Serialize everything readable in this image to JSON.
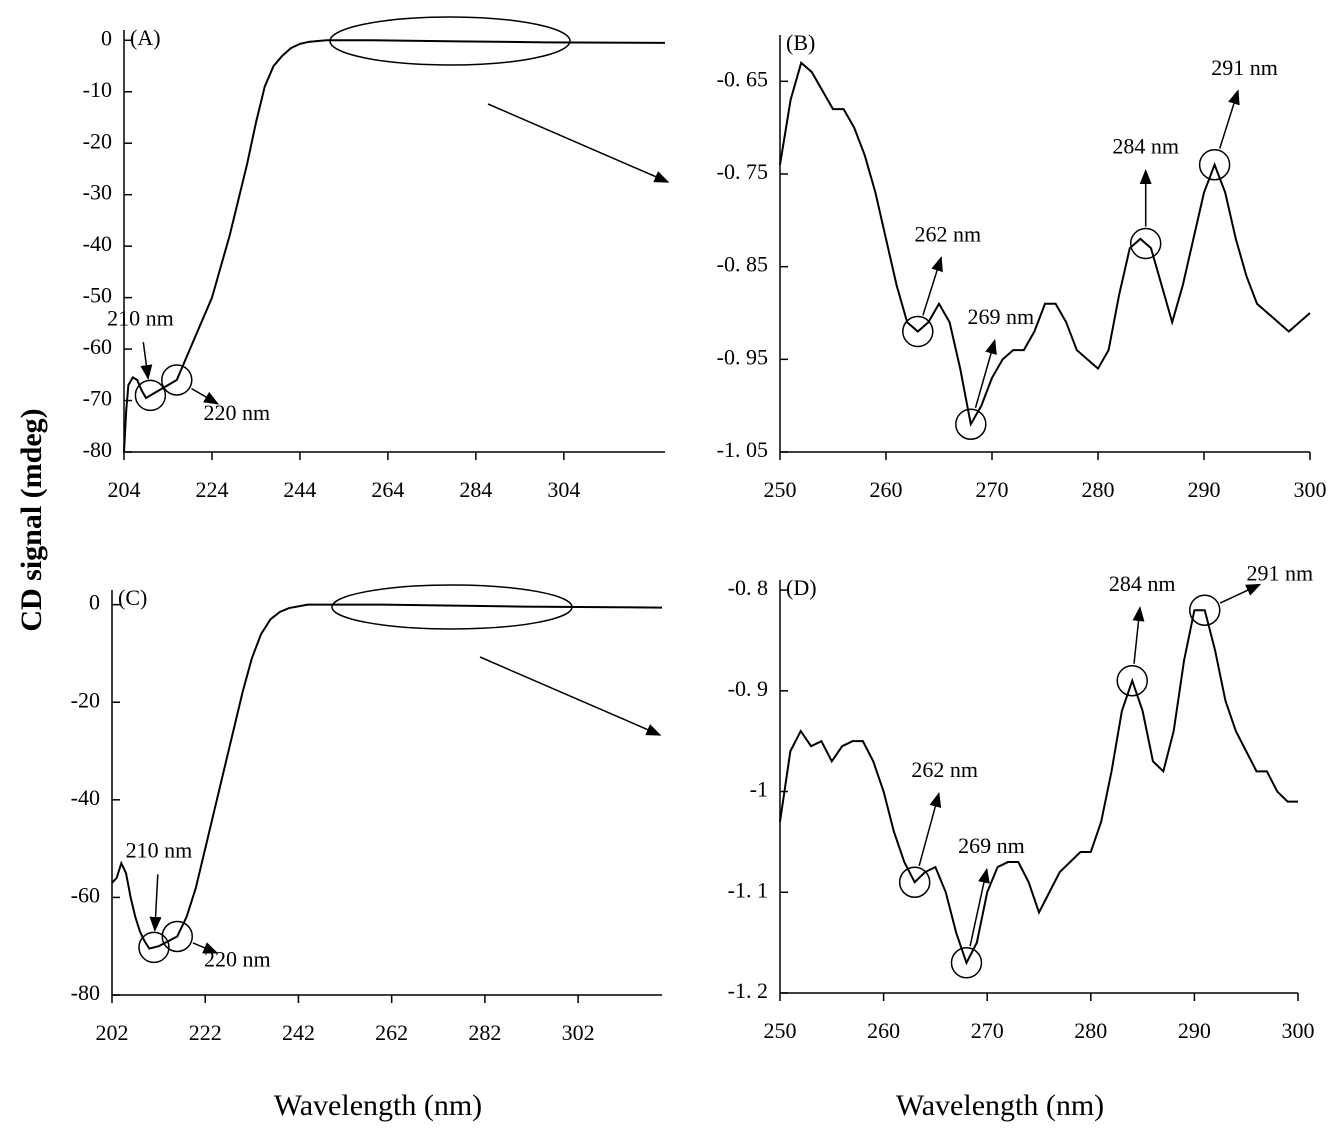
{
  "ylabel": "CD signal (mdeg)",
  "chart_data": [
    {
      "type": "line",
      "label": "(A)",
      "xlim": [
        204,
        327
      ],
      "ylim": [
        -80,
        2
      ],
      "xticks": [
        204,
        224,
        244,
        264,
        284,
        304
      ],
      "yticks": [
        0,
        -10,
        -20,
        -30,
        -40,
        -50,
        -60,
        -70,
        -80
      ],
      "x": [
        204,
        204.5,
        205,
        206,
        207,
        208,
        209,
        210,
        212,
        214,
        216,
        218,
        220,
        222,
        224,
        226,
        228,
        230,
        232,
        234,
        236,
        238,
        240,
        242,
        244,
        246,
        250,
        260,
        280,
        300,
        327
      ],
      "series": [
        {
          "color": "#000000",
          "values": [
            -80,
            -72,
            -67,
            -65.5,
            -66,
            -68,
            -69.5,
            -69,
            -68,
            -67,
            -66,
            -62,
            -58,
            -54,
            -50,
            -44,
            -38,
            -31,
            -24,
            -16,
            -9,
            -5,
            -3,
            -1.5,
            -0.7,
            -0.3,
            0,
            0,
            -0.2,
            -0.4,
            -0.5
          ]
        }
      ],
      "annotations": [
        {
          "text": "210 nm",
          "x": 210
        },
        {
          "text": "220 nm",
          "x": 216
        }
      ]
    },
    {
      "type": "line",
      "label": "(B)",
      "xlim": [
        250,
        300
      ],
      "ylim": [
        -1.05,
        -0.6
      ],
      "xticks": [
        250,
        260,
        270,
        280,
        290,
        300
      ],
      "yticks": [
        {
          "value": -0.65,
          "label": "-0. 65"
        },
        {
          "value": -0.75,
          "label": "-0. 75"
        },
        {
          "value": -0.85,
          "label": "-0. 85"
        },
        {
          "value": -0.95,
          "label": "-0. 95"
        },
        {
          "value": -1.05,
          "label": "-1. 05"
        }
      ],
      "x": [
        250,
        251,
        252,
        253,
        254,
        255,
        256,
        257,
        258,
        259,
        260,
        261,
        262,
        263,
        264,
        265,
        266,
        267,
        268,
        269,
        270,
        271,
        272,
        273,
        274,
        275,
        276,
        277,
        278,
        279,
        280,
        281,
        282,
        283,
        284,
        285,
        286,
        287,
        288,
        289,
        290,
        291,
        292,
        293,
        294,
        295,
        296,
        297,
        298,
        299,
        300
      ],
      "series": [
        {
          "color": "#000000",
          "values": [
            -0.74,
            -0.67,
            -0.63,
            -0.64,
            -0.66,
            -0.68,
            -0.68,
            -0.7,
            -0.73,
            -0.77,
            -0.82,
            -0.87,
            -0.91,
            -0.92,
            -0.91,
            -0.89,
            -0.91,
            -0.96,
            -1.02,
            -1.0,
            -0.97,
            -0.95,
            -0.94,
            -0.94,
            -0.92,
            -0.89,
            -0.89,
            -0.91,
            -0.94,
            -0.95,
            -0.96,
            -0.94,
            -0.88,
            -0.83,
            -0.82,
            -0.83,
            -0.87,
            -0.91,
            -0.87,
            -0.82,
            -0.77,
            -0.74,
            -0.77,
            -0.82,
            -0.86,
            -0.89,
            -0.9,
            -0.91,
            -0.92,
            -0.91,
            -0.9
          ]
        }
      ],
      "annotations": [
        {
          "text": "262 nm",
          "x": 263
        },
        {
          "text": "269 nm",
          "x": 268
        },
        {
          "text": "284 nm",
          "x": 284.5
        },
        {
          "text": "291 nm",
          "x": 291
        }
      ]
    },
    {
      "type": "line",
      "label": "(C)",
      "xlim": [
        202,
        320
      ],
      "ylim": [
        -80,
        3
      ],
      "xticks": [
        202,
        222,
        242,
        262,
        282,
        302
      ],
      "yticks": [
        0,
        -20,
        -40,
        -60,
        -80
      ],
      "x": [
        202,
        203,
        204,
        205,
        206,
        207,
        208,
        209,
        210,
        212,
        214,
        216,
        218,
        220,
        222,
        224,
        226,
        228,
        230,
        232,
        234,
        236,
        238,
        240,
        244,
        260,
        290,
        320
      ],
      "series": [
        {
          "color": "#000000",
          "values": [
            -57,
            -56,
            -53,
            -55,
            -60,
            -64,
            -67,
            -69,
            -70.5,
            -70,
            -69,
            -68,
            -64,
            -58,
            -50,
            -42,
            -34,
            -26,
            -18,
            -11,
            -6,
            -3,
            -1.5,
            -0.7,
            0,
            0,
            -0.4,
            -0.6
          ]
        }
      ],
      "annotations": [
        {
          "text": "210 nm",
          "x": 211
        },
        {
          "text": "220 nm",
          "x": 216
        }
      ]
    },
    {
      "type": "line",
      "label": "(D)",
      "xlim": [
        250,
        300
      ],
      "ylim": [
        -1.2,
        -0.79
      ],
      "xticks": [
        250,
        260,
        270,
        280,
        290,
        300
      ],
      "yticks": [
        {
          "value": -0.8,
          "label": "-0. 8"
        },
        {
          "value": -0.9,
          "label": "-0. 9"
        },
        -1,
        {
          "value": -1.1,
          "label": "-1. 1"
        },
        {
          "value": -1.2,
          "label": "-1. 2"
        }
      ],
      "x": [
        250,
        251,
        252,
        253,
        254,
        255,
        256,
        257,
        258,
        259,
        260,
        261,
        262,
        263,
        264,
        265,
        266,
        267,
        268,
        269,
        270,
        271,
        272,
        273,
        274,
        275,
        276,
        277,
        278,
        279,
        280,
        281,
        282,
        283,
        284,
        285,
        286,
        287,
        288,
        289,
        290,
        291,
        292,
        293,
        294,
        295,
        296,
        297,
        298,
        299,
        300
      ],
      "series": [
        {
          "color": "#000000",
          "values": [
            -1.03,
            -0.96,
            -0.94,
            -0.955,
            -0.95,
            -0.97,
            -0.955,
            -0.95,
            -0.95,
            -0.97,
            -1.0,
            -1.04,
            -1.07,
            -1.09,
            -1.08,
            -1.075,
            -1.1,
            -1.14,
            -1.17,
            -1.15,
            -1.1,
            -1.075,
            -1.07,
            -1.07,
            -1.09,
            -1.12,
            -1.1,
            -1.08,
            -1.07,
            -1.06,
            -1.06,
            -1.03,
            -0.98,
            -0.92,
            -0.89,
            -0.92,
            -0.97,
            -0.98,
            -0.94,
            -0.87,
            -0.82,
            -0.82,
            -0.86,
            -0.91,
            -0.94,
            -0.96,
            -0.98,
            -0.98,
            -1.0,
            -1.01,
            -1.01
          ]
        }
      ],
      "annotations": [
        {
          "text": "262 nm",
          "x": 263
        },
        {
          "text": "269 nm",
          "x": 268
        },
        {
          "text": "284 nm",
          "x": 284
        },
        {
          "text": "291 nm",
          "x": 291
        }
      ],
      "xlabel": "Wavelength (nm)"
    }
  ],
  "xlabel": "Wavelength (nm)"
}
